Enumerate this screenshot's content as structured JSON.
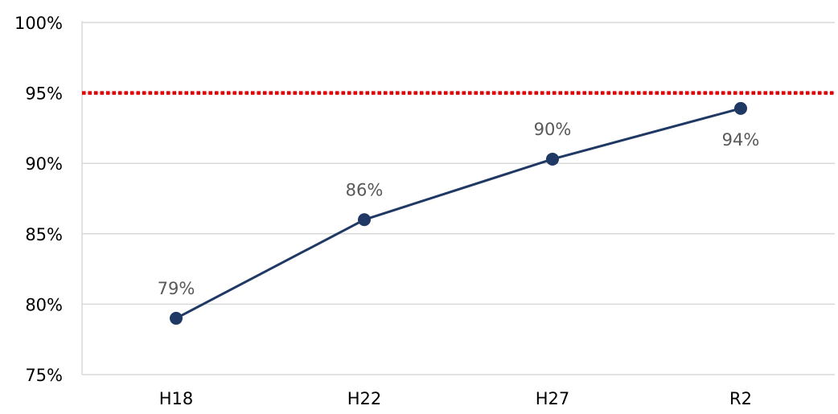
{
  "chart_data": {
    "type": "line",
    "title": "",
    "xlabel": "",
    "ylabel": "",
    "categories": [
      "H18",
      "H22",
      "H27",
      "R2"
    ],
    "series": [
      {
        "values": [
          79,
          86,
          90.3,
          93.9
        ],
        "labels": [
          "79%",
          "86%",
          "90%",
          "94%"
        ],
        "color": "#1f3864"
      }
    ],
    "reference_line": {
      "value": 95,
      "color": "#e00000",
      "style": "dotted"
    },
    "ylim": [
      75,
      100
    ],
    "yticks": [
      75,
      80,
      85,
      90,
      95,
      100
    ],
    "ytick_labels": [
      "75%",
      "80%",
      "85%",
      "90%",
      "95%",
      "100%"
    ],
    "grid": true,
    "legend": "none",
    "colors": {
      "axis_text": "#000000",
      "data_label": "#595959",
      "gridline": "#d9d9d9"
    }
  }
}
